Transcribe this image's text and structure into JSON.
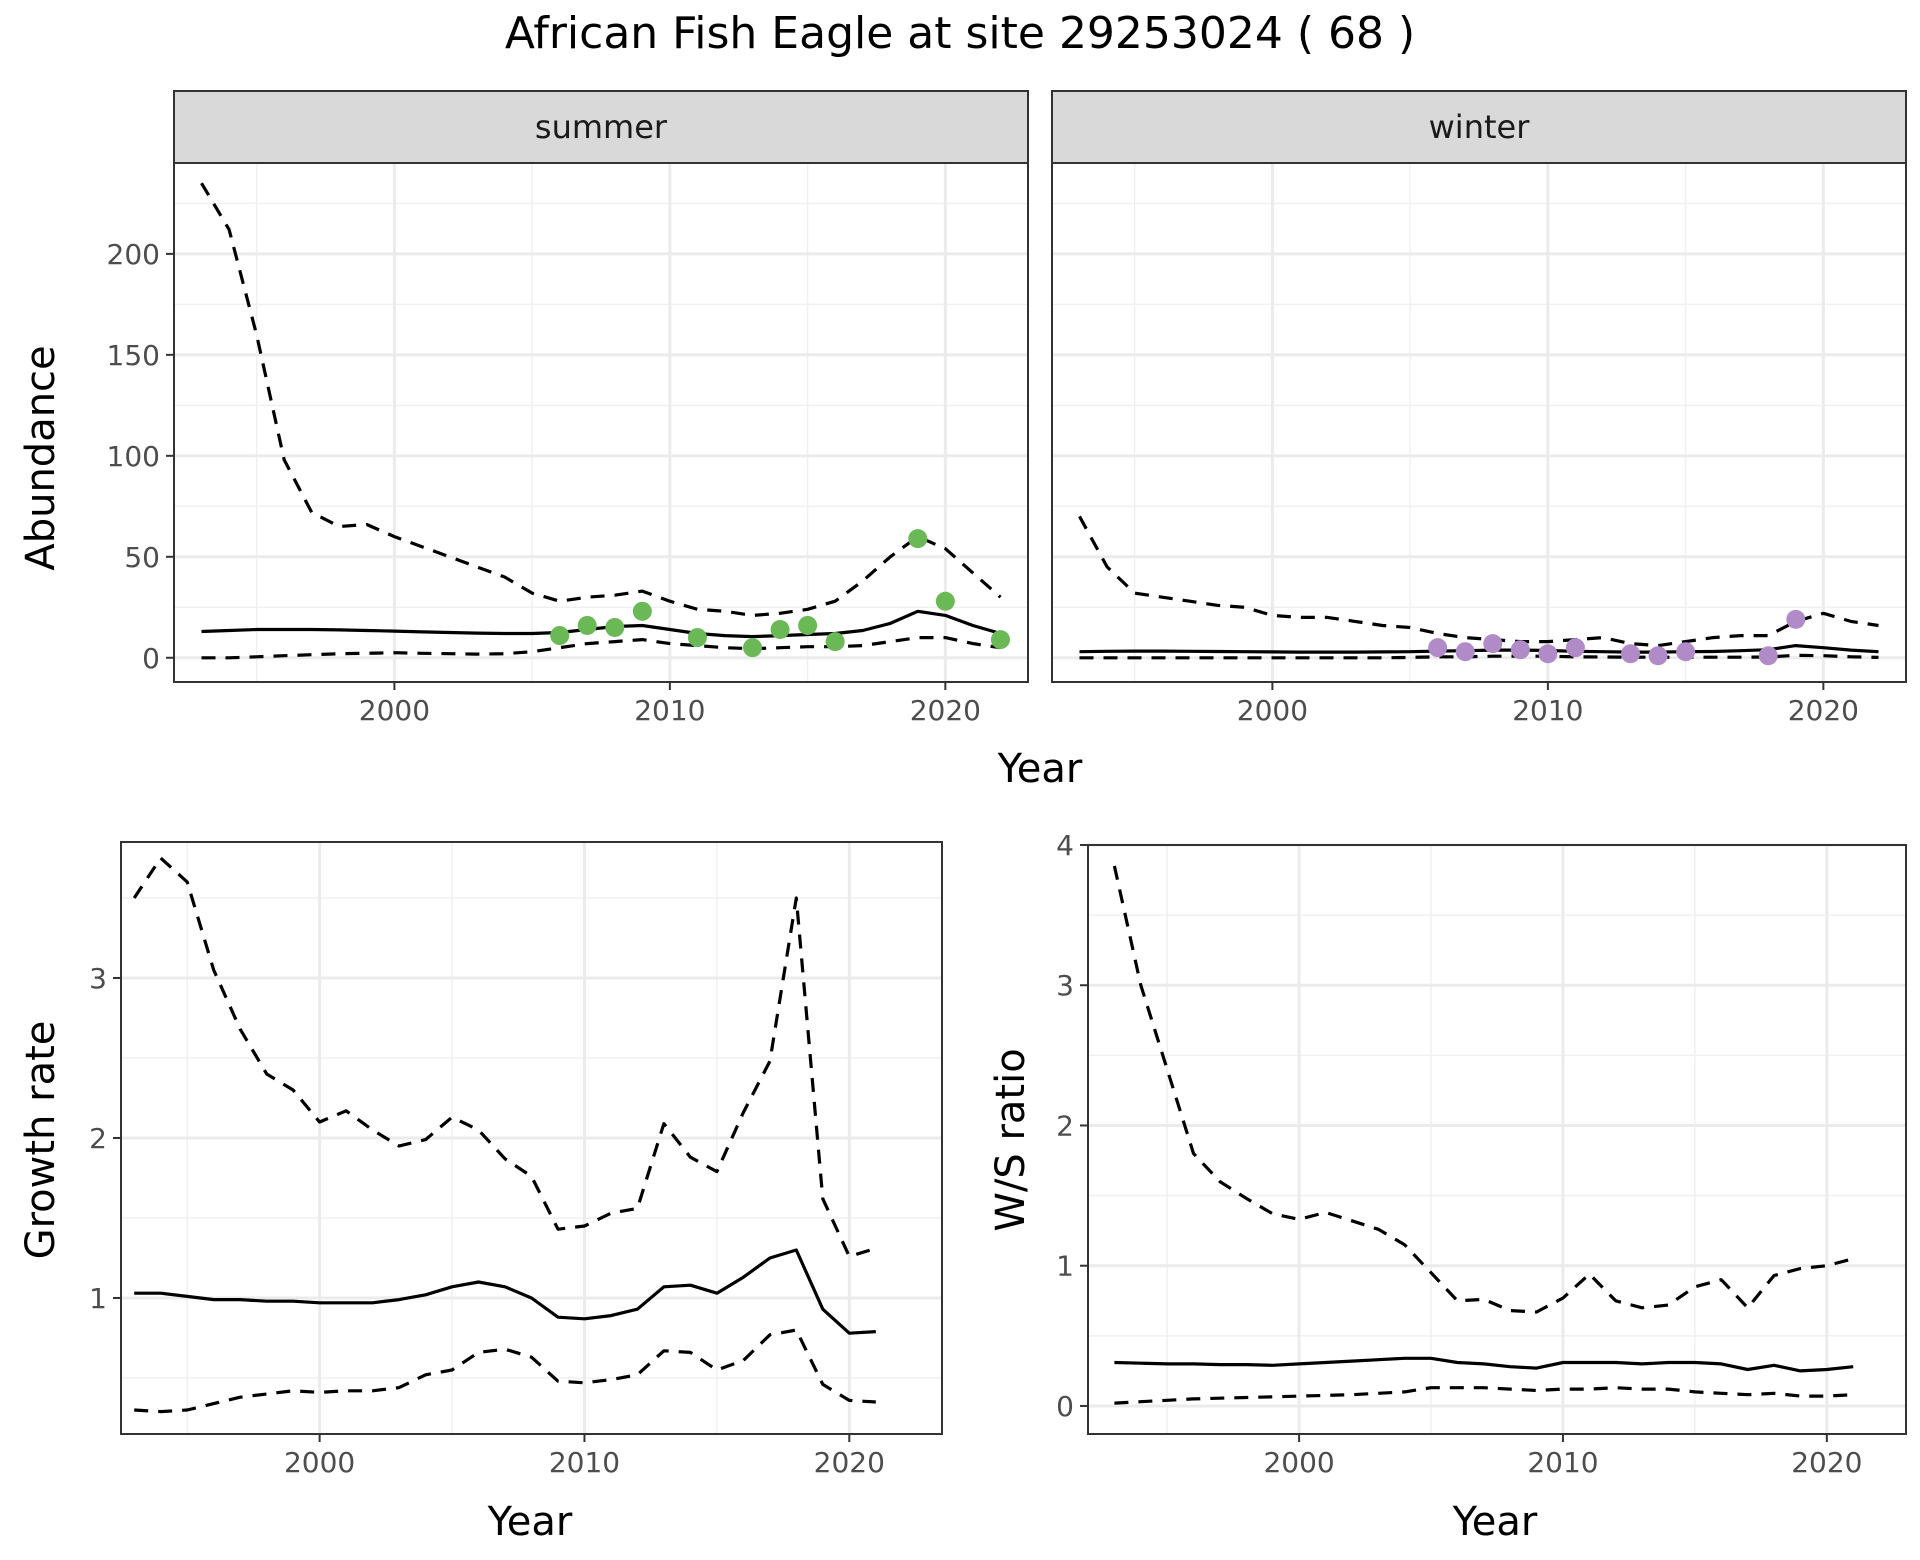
{
  "title": "African Fish Eagle at site 29253024 ( 68 )",
  "chart_data": [
    {
      "type": "line",
      "facets": [
        "summer",
        "winter"
      ],
      "xlabel": "Year",
      "ylabel": "Abundance",
      "xlim": [
        1992,
        2023
      ],
      "ylim": [
        -12,
        245
      ],
      "xticks": [
        2000,
        2010,
        2020
      ],
      "yticks": [
        0,
        50,
        100,
        150,
        200
      ],
      "grid": true,
      "point_colors": {
        "summer": "#6ab856",
        "winter": "#b08bc8"
      },
      "panels": {
        "summer": {
          "x": [
            1993,
            1994,
            1995,
            1996,
            1997,
            1998,
            1999,
            2000,
            2001,
            2002,
            2003,
            2004,
            2005,
            2006,
            2007,
            2008,
            2009,
            2010,
            2011,
            2012,
            2013,
            2014,
            2015,
            2016,
            2017,
            2018,
            2019,
            2020,
            2021,
            2022
          ],
          "mean": [
            13,
            13.5,
            14,
            14,
            14,
            13.8,
            13.5,
            13.2,
            12.8,
            12.5,
            12.2,
            12,
            12,
            12.5,
            14,
            15.5,
            16,
            14,
            12,
            11,
            10.5,
            11,
            11.5,
            12,
            13.5,
            17,
            23,
            21,
            16,
            12
          ],
          "upper": [
            235,
            212,
            160,
            98,
            72,
            65,
            66,
            60,
            55,
            50,
            45,
            40,
            32,
            28,
            30,
            31,
            33,
            28,
            24,
            23,
            21,
            22,
            24,
            28,
            38,
            50,
            60,
            54,
            42,
            30
          ],
          "lower": [
            0,
            0,
            0.5,
            1,
            1.5,
            2,
            2.2,
            2.5,
            2.2,
            2,
            1.8,
            2,
            3,
            5,
            7,
            8,
            9,
            7,
            6,
            5,
            4.5,
            5,
            5.5,
            5.5,
            6,
            8,
            10,
            10,
            7,
            5
          ],
          "points_x": [
            2006,
            2007,
            2008,
            2009,
            2011,
            2013,
            2014,
            2015,
            2016,
            2019,
            2020,
            2022
          ],
          "points_y": [
            11,
            16,
            15,
            23,
            10,
            5,
            14,
            16,
            8,
            59,
            28,
            9
          ]
        },
        "winter": {
          "x": [
            1993,
            1994,
            1995,
            1996,
            1997,
            1998,
            1999,
            2000,
            2001,
            2002,
            2003,
            2004,
            2005,
            2006,
            2007,
            2008,
            2009,
            2010,
            2011,
            2012,
            2013,
            2014,
            2015,
            2016,
            2017,
            2018,
            2019,
            2020,
            2021,
            2022
          ],
          "mean": [
            3,
            3.2,
            3.3,
            3.3,
            3.2,
            3.1,
            3,
            2.9,
            2.8,
            2.8,
            2.8,
            2.9,
            3,
            3.3,
            3.5,
            3.8,
            3.8,
            3.6,
            3.2,
            3,
            2.8,
            2.8,
            3,
            3.1,
            3.5,
            4,
            6,
            5,
            3.8,
            3
          ],
          "upper": [
            70,
            45,
            32,
            30,
            28,
            26,
            25,
            21,
            20,
            20,
            18,
            16,
            15,
            12,
            10,
            9,
            8,
            8,
            9,
            10,
            7,
            6,
            8,
            10,
            11,
            11,
            18,
            22,
            18,
            16
          ],
          "lower": [
            0,
            0,
            0,
            0,
            0,
            0,
            0,
            0,
            0,
            0,
            0,
            0,
            0.2,
            0.5,
            0.5,
            0.8,
            0.8,
            0.8,
            0.5,
            0.4,
            0.3,
            0.3,
            0.3,
            0.3,
            0.3,
            0.4,
            1.2,
            1,
            0.5,
            0.2
          ],
          "points_x": [
            2006,
            2007,
            2008,
            2009,
            2010,
            2011,
            2013,
            2014,
            2015,
            2018,
            2019
          ],
          "points_y": [
            5,
            3,
            7,
            4,
            2,
            5,
            2,
            1,
            3,
            1,
            19
          ]
        }
      }
    },
    {
      "type": "line",
      "xlabel": "Year",
      "ylabel": "Growth rate",
      "xlim": [
        1992.5,
        2023.5
      ],
      "ylim": [
        0.15,
        3.85
      ],
      "xticks": [
        2000,
        2010,
        2020
      ],
      "yticks": [
        1,
        2,
        3
      ],
      "grid": true,
      "x": [
        1993,
        1994,
        1995,
        1996,
        1997,
        1998,
        1999,
        2000,
        2001,
        2002,
        2003,
        2004,
        2005,
        2006,
        2007,
        2008,
        2009,
        2010,
        2011,
        2012,
        2013,
        2014,
        2015,
        2016,
        2017,
        2018,
        2019,
        2020,
        2021
      ],
      "mean": [
        1.03,
        1.03,
        1.01,
        0.99,
        0.99,
        0.98,
        0.98,
        0.97,
        0.97,
        0.97,
        0.99,
        1.02,
        1.07,
        1.1,
        1.07,
        1.0,
        0.88,
        0.87,
        0.89,
        0.93,
        1.07,
        1.08,
        1.03,
        1.13,
        1.25,
        1.3,
        0.93,
        0.78,
        0.79
      ],
      "upper": [
        3.5,
        3.75,
        3.6,
        3.05,
        2.68,
        2.4,
        2.3,
        2.1,
        2.17,
        2.05,
        1.95,
        1.99,
        2.13,
        2.05,
        1.87,
        1.76,
        1.43,
        1.45,
        1.53,
        1.56,
        2.09,
        1.88,
        1.79,
        2.16,
        2.48,
        3.5,
        1.62,
        1.26,
        1.31
      ],
      "lower": [
        0.3,
        0.29,
        0.3,
        0.34,
        0.38,
        0.4,
        0.42,
        0.41,
        0.42,
        0.42,
        0.44,
        0.52,
        0.55,
        0.66,
        0.68,
        0.63,
        0.48,
        0.47,
        0.49,
        0.52,
        0.67,
        0.66,
        0.55,
        0.61,
        0.77,
        0.8,
        0.46,
        0.36,
        0.35
      ]
    },
    {
      "type": "line",
      "xlabel": "Year",
      "ylabel": "W/S ratio",
      "xlim": [
        1992,
        2023
      ],
      "ylim": [
        -0.2,
        4.0
      ],
      "xticks": [
        2000,
        2010,
        2020
      ],
      "yticks": [
        0,
        1,
        2,
        3,
        4
      ],
      "grid": true,
      "x": [
        1993,
        1994,
        1995,
        1996,
        1997,
        1998,
        1999,
        2000,
        2001,
        2002,
        2003,
        2004,
        2005,
        2006,
        2007,
        2008,
        2009,
        2010,
        2011,
        2012,
        2013,
        2014,
        2015,
        2016,
        2017,
        2018,
        2019,
        2020,
        2021
      ],
      "mean": [
        0.31,
        0.305,
        0.3,
        0.3,
        0.295,
        0.295,
        0.29,
        0.3,
        0.31,
        0.32,
        0.33,
        0.34,
        0.34,
        0.31,
        0.3,
        0.28,
        0.27,
        0.31,
        0.31,
        0.31,
        0.3,
        0.31,
        0.31,
        0.3,
        0.26,
        0.29,
        0.25,
        0.26,
        0.28
      ],
      "upper": [
        3.85,
        3.0,
        2.4,
        1.8,
        1.6,
        1.48,
        1.37,
        1.33,
        1.38,
        1.32,
        1.26,
        1.15,
        0.95,
        0.75,
        0.76,
        0.68,
        0.67,
        0.77,
        0.94,
        0.75,
        0.7,
        0.72,
        0.85,
        0.9,
        0.7,
        0.93,
        0.98,
        1.0,
        1.05
      ],
      "lower": [
        0.02,
        0.03,
        0.04,
        0.05,
        0.055,
        0.06,
        0.065,
        0.07,
        0.075,
        0.08,
        0.09,
        0.1,
        0.13,
        0.13,
        0.13,
        0.12,
        0.11,
        0.12,
        0.12,
        0.13,
        0.12,
        0.12,
        0.1,
        0.09,
        0.08,
        0.09,
        0.07,
        0.07,
        0.08
      ]
    }
  ]
}
